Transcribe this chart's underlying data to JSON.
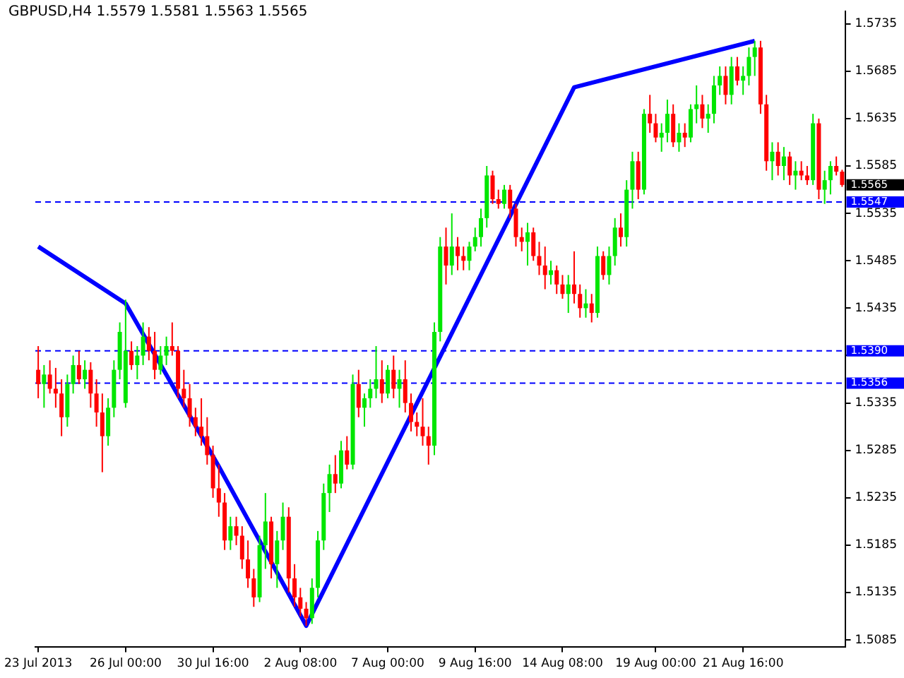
{
  "chart_data": {
    "type": "candlestick",
    "title": "GBPUSD,H4 1.5579 1.5581 1.5563 1.5565",
    "categories": [
      "23 Jul 2013",
      null,
      null,
      null,
      null,
      null,
      null,
      null,
      null,
      null,
      null,
      null,
      null,
      null,
      null,
      "26 Jul 00:00",
      null,
      null,
      null,
      null,
      null,
      null,
      null,
      null,
      null,
      null,
      null,
      null,
      null,
      null,
      "30 Jul 16:00",
      null,
      null,
      null,
      null,
      null,
      null,
      null,
      null,
      null,
      null,
      null,
      null,
      null,
      null,
      "2 Aug 08:00",
      null,
      null,
      null,
      null,
      null,
      null,
      null,
      null,
      null,
      null,
      null,
      null,
      null,
      null,
      "7 Aug 00:00",
      null,
      null,
      null,
      null,
      null,
      null,
      null,
      null,
      null,
      null,
      null,
      null,
      null,
      null,
      "9 Aug 16:00",
      null,
      null,
      null,
      null,
      null,
      null,
      null,
      null,
      null,
      null,
      null,
      null,
      null,
      null,
      "14 Aug 08:00",
      null,
      null,
      null,
      null,
      null,
      null,
      null,
      null,
      null,
      null,
      null,
      null,
      null,
      null,
      null,
      "19 Aug 00:00",
      null,
      null,
      null,
      null,
      null,
      null,
      null,
      null,
      null,
      null,
      null,
      null,
      null,
      null,
      "21 Aug 16:00",
      null,
      null,
      null,
      null,
      null,
      null,
      null,
      null,
      null,
      null,
      null,
      null,
      null,
      null,
      null,
      null,
      null
    ],
    "ohlc": [
      [
        1.537,
        1.5395,
        1.534,
        1.5355
      ],
      [
        1.5355,
        1.5375,
        1.533,
        1.5365
      ],
      [
        1.5365,
        1.538,
        1.5345,
        1.535
      ],
      [
        1.535,
        1.5372,
        1.533,
        1.5345
      ],
      [
        1.5345,
        1.536,
        1.53,
        1.532
      ],
      [
        1.532,
        1.5365,
        1.531,
        1.5355
      ],
      [
        1.5355,
        1.5385,
        1.5345,
        1.5375
      ],
      [
        1.5375,
        1.539,
        1.5355,
        1.536
      ],
      [
        1.536,
        1.538,
        1.535,
        1.537
      ],
      [
        1.537,
        1.5378,
        1.533,
        1.5345
      ],
      [
        1.5345,
        1.536,
        1.531,
        1.5325
      ],
      [
        1.5325,
        1.5345,
        1.5262,
        1.53
      ],
      [
        1.53,
        1.534,
        1.529,
        1.533
      ],
      [
        1.533,
        1.538,
        1.532,
        1.537
      ],
      [
        1.537,
        1.542,
        1.536,
        1.541
      ],
      [
        1.5335,
        1.5444,
        1.533,
        1.539
      ],
      [
        1.539,
        1.54,
        1.537,
        1.5375
      ],
      [
        1.5375,
        1.5395,
        1.536,
        1.5385
      ],
      [
        1.5385,
        1.542,
        1.5375,
        1.5405
      ],
      [
        1.5405,
        1.5415,
        1.538,
        1.539
      ],
      [
        1.539,
        1.541,
        1.536,
        1.537
      ],
      [
        1.537,
        1.5395,
        1.5365,
        1.5385
      ],
      [
        1.5385,
        1.5405,
        1.5375,
        1.5395
      ],
      [
        1.5395,
        1.542,
        1.5385,
        1.539
      ],
      [
        1.539,
        1.5395,
        1.534,
        1.535
      ],
      [
        1.535,
        1.537,
        1.533,
        1.534
      ],
      [
        1.534,
        1.5355,
        1.531,
        1.532
      ],
      [
        1.532,
        1.533,
        1.53,
        1.531
      ],
      [
        1.531,
        1.534,
        1.529,
        1.53
      ],
      [
        1.53,
        1.532,
        1.527,
        1.528
      ],
      [
        1.528,
        1.529,
        1.5235,
        1.5245
      ],
      [
        1.5245,
        1.527,
        1.5215,
        1.523
      ],
      [
        1.523,
        1.524,
        1.518,
        1.519
      ],
      [
        1.519,
        1.5215,
        1.518,
        1.5205
      ],
      [
        1.5205,
        1.5215,
        1.5185,
        1.5195
      ],
      [
        1.5195,
        1.5205,
        1.516,
        1.517
      ],
      [
        1.517,
        1.519,
        1.514,
        1.515
      ],
      [
        1.515,
        1.516,
        1.512,
        1.513
      ],
      [
        1.513,
        1.5195,
        1.5125,
        1.5185
      ],
      [
        1.5185,
        1.524,
        1.516,
        1.521
      ],
      [
        1.521,
        1.5215,
        1.515,
        1.5165
      ],
      [
        1.5165,
        1.52,
        1.514,
        1.519
      ],
      [
        1.519,
        1.523,
        1.518,
        1.5215
      ],
      [
        1.5215,
        1.5225,
        1.5135,
        1.515
      ],
      [
        1.515,
        1.5165,
        1.512,
        1.513
      ],
      [
        1.513,
        1.514,
        1.511,
        1.5118
      ],
      [
        1.5118,
        1.5125,
        1.51,
        1.5108
      ],
      [
        1.5108,
        1.515,
        1.5102,
        1.514
      ],
      [
        1.514,
        1.52,
        1.513,
        1.519
      ],
      [
        1.519,
        1.525,
        1.518,
        1.524
      ],
      [
        1.524,
        1.527,
        1.522,
        1.526
      ],
      [
        1.526,
        1.528,
        1.524,
        1.525
      ],
      [
        1.525,
        1.5295,
        1.5245,
        1.5285
      ],
      [
        1.5285,
        1.53,
        1.5265,
        1.527
      ],
      [
        1.527,
        1.5365,
        1.5265,
        1.5355
      ],
      [
        1.5355,
        1.537,
        1.532,
        1.533
      ],
      [
        1.533,
        1.5345,
        1.531,
        1.534
      ],
      [
        1.534,
        1.536,
        1.533,
        1.535
      ],
      [
        1.535,
        1.5395,
        1.534,
        1.536
      ],
      [
        1.536,
        1.538,
        1.5335,
        1.5345
      ],
      [
        1.5345,
        1.5375,
        1.534,
        1.537
      ],
      [
        1.537,
        1.5385,
        1.534,
        1.535
      ],
      [
        1.535,
        1.537,
        1.533,
        1.536
      ],
      [
        1.536,
        1.538,
        1.5325,
        1.5335
      ],
      [
        1.5335,
        1.5345,
        1.5305,
        1.5315
      ],
      [
        1.5315,
        1.5325,
        1.53,
        1.531
      ],
      [
        1.531,
        1.534,
        1.529,
        1.53
      ],
      [
        1.53,
        1.531,
        1.527,
        1.529
      ],
      [
        1.529,
        1.542,
        1.528,
        1.541
      ],
      [
        1.541,
        1.551,
        1.54,
        1.55
      ],
      [
        1.55,
        1.552,
        1.546,
        1.548
      ],
      [
        1.548,
        1.5535,
        1.547,
        1.55
      ],
      [
        1.55,
        1.551,
        1.5475,
        1.549
      ],
      [
        1.549,
        1.55,
        1.5475,
        1.5485
      ],
      [
        1.5485,
        1.5505,
        1.5475,
        1.55
      ],
      [
        1.55,
        1.552,
        1.5495,
        1.551
      ],
      [
        1.551,
        1.554,
        1.55,
        1.553
      ],
      [
        1.553,
        1.5585,
        1.552,
        1.5575
      ],
      [
        1.5575,
        1.558,
        1.5545,
        1.555
      ],
      [
        1.555,
        1.556,
        1.554,
        1.5545
      ],
      [
        1.5545,
        1.5565,
        1.554,
        1.556
      ],
      [
        1.556,
        1.5565,
        1.553,
        1.554
      ],
      [
        1.554,
        1.5545,
        1.55,
        1.551
      ],
      [
        1.551,
        1.552,
        1.5495,
        1.5505
      ],
      [
        1.5505,
        1.5525,
        1.548,
        1.5515
      ],
      [
        1.5515,
        1.552,
        1.5485,
        1.549
      ],
      [
        1.549,
        1.5505,
        1.547,
        1.548
      ],
      [
        1.548,
        1.55,
        1.5455,
        1.547
      ],
      [
        1.547,
        1.5485,
        1.546,
        1.5475
      ],
      [
        1.5475,
        1.548,
        1.545,
        1.546
      ],
      [
        1.546,
        1.547,
        1.5445,
        1.545
      ],
      [
        1.545,
        1.547,
        1.543,
        1.546
      ],
      [
        1.546,
        1.5495,
        1.544,
        1.545
      ],
      [
        1.545,
        1.546,
        1.5425,
        1.5435
      ],
      [
        1.5435,
        1.5455,
        1.5425,
        1.544
      ],
      [
        1.544,
        1.545,
        1.542,
        1.543
      ],
      [
        1.543,
        1.55,
        1.5425,
        1.549
      ],
      [
        1.549,
        1.5495,
        1.5465,
        1.547
      ],
      [
        1.547,
        1.55,
        1.546,
        1.549
      ],
      [
        1.549,
        1.553,
        1.548,
        1.552
      ],
      [
        1.552,
        1.5535,
        1.55,
        1.551
      ],
      [
        1.551,
        1.557,
        1.55,
        1.556
      ],
      [
        1.556,
        1.56,
        1.554,
        1.559
      ],
      [
        1.559,
        1.56,
        1.555,
        1.556
      ],
      [
        1.556,
        1.5645,
        1.5555,
        1.564
      ],
      [
        1.564,
        1.566,
        1.562,
        1.563
      ],
      [
        1.563,
        1.564,
        1.561,
        1.5615
      ],
      [
        1.5615,
        1.563,
        1.56,
        1.562
      ],
      [
        1.562,
        1.5655,
        1.561,
        1.564
      ],
      [
        1.564,
        1.565,
        1.5605,
        1.561
      ],
      [
        1.561,
        1.563,
        1.56,
        1.562
      ],
      [
        1.562,
        1.563,
        1.5605,
        1.5615
      ],
      [
        1.5615,
        1.565,
        1.561,
        1.5645
      ],
      [
        1.5645,
        1.567,
        1.563,
        1.565
      ],
      [
        1.565,
        1.566,
        1.5625,
        1.5635
      ],
      [
        1.5635,
        1.565,
        1.562,
        1.564
      ],
      [
        1.564,
        1.568,
        1.563,
        1.567
      ],
      [
        1.567,
        1.569,
        1.566,
        1.568
      ],
      [
        1.568,
        1.569,
        1.565,
        1.566
      ],
      [
        1.566,
        1.57,
        1.565,
        1.569
      ],
      [
        1.569,
        1.57,
        1.567,
        1.5675
      ],
      [
        1.5675,
        1.569,
        1.566,
        1.568
      ],
      [
        1.568,
        1.571,
        1.567,
        1.57
      ],
      [
        1.57,
        1.5717,
        1.568,
        1.571
      ],
      [
        1.571,
        1.5717,
        1.564,
        1.565
      ],
      [
        1.565,
        1.566,
        1.558,
        1.559
      ],
      [
        1.559,
        1.561,
        1.557,
        1.56
      ],
      [
        1.56,
        1.561,
        1.5575,
        1.5585
      ],
      [
        1.5585,
        1.5605,
        1.557,
        1.5595
      ],
      [
        1.5595,
        1.56,
        1.5565,
        1.5575
      ],
      [
        1.5575,
        1.559,
        1.556,
        1.558
      ],
      [
        1.558,
        1.559,
        1.557,
        1.5575
      ],
      [
        1.5575,
        1.5585,
        1.5565,
        1.557
      ],
      [
        1.557,
        1.564,
        1.5565,
        1.563
      ],
      [
        1.563,
        1.5635,
        1.555,
        1.556
      ],
      [
        1.556,
        1.558,
        1.5545,
        1.557
      ],
      [
        1.557,
        1.559,
        1.5555,
        1.5585
      ],
      [
        1.5585,
        1.5595,
        1.5575,
        1.5579
      ],
      [
        1.5579,
        1.5581,
        1.5563,
        1.5565
      ]
    ],
    "annotations": [
      "1.5565"
    ],
    "ylim": [
      1.5078,
      1.5748
    ],
    "yticks": [
      1.5085,
      1.5135,
      1.5185,
      1.5235,
      1.5285,
      1.5335,
      {
        "value": 1.5385,
        "label": null
      },
      1.5435,
      1.5485,
      1.5535,
      1.5585,
      1.5635,
      1.5685,
      1.5735
    ],
    "ref_lines": [
      {
        "axis": "y",
        "value": 1.5547,
        "label": "1.5547",
        "color": "#0000ff",
        "line_style": "dashed"
      },
      {
        "axis": "y",
        "value": 1.539,
        "label": "1.5390",
        "color": "#0000ff",
        "line_style": "dashed"
      },
      {
        "axis": "y",
        "value": 1.5356,
        "label": "1.5356",
        "color": "#0000ff",
        "line_style": "dashed"
      }
    ],
    "series": [
      {
        "type": "line",
        "color": "#0000ff",
        "values": [
          1.55,
          null,
          null,
          null,
          null,
          null,
          null,
          null,
          null,
          null,
          null,
          null,
          null,
          null,
          null,
          1.544,
          null,
          null,
          null,
          null,
          null,
          null,
          null,
          null,
          null,
          null,
          null,
          null,
          null,
          null,
          null,
          1.5268,
          null,
          null,
          null,
          null,
          null,
          null,
          null,
          null,
          null,
          null,
          null,
          null,
          null,
          null,
          1.51,
          null,
          null,
          null,
          null,
          null,
          null,
          null,
          null,
          null,
          null,
          null,
          null,
          null,
          null,
          null,
          null,
          null,
          null,
          null,
          null,
          null,
          null,
          null,
          null,
          null,
          null,
          null,
          null,
          null,
          null,
          null,
          null,
          null,
          null,
          null,
          null,
          null,
          null,
          null,
          null,
          null,
          null,
          null,
          null,
          null,
          1.5668,
          null,
          null,
          null,
          null,
          null,
          null,
          null,
          null,
          null,
          null,
          null,
          null,
          null,
          null,
          null,
          null,
          null,
          null,
          null,
          null,
          null,
          null,
          null,
          null,
          null,
          null,
          null,
          null,
          null,
          null,
          1.5717,
          null,
          null,
          null,
          null,
          null,
          null,
          null,
          null,
          null,
          null,
          null,
          null,
          null,
          null,
          null
        ]
      }
    ]
  }
}
